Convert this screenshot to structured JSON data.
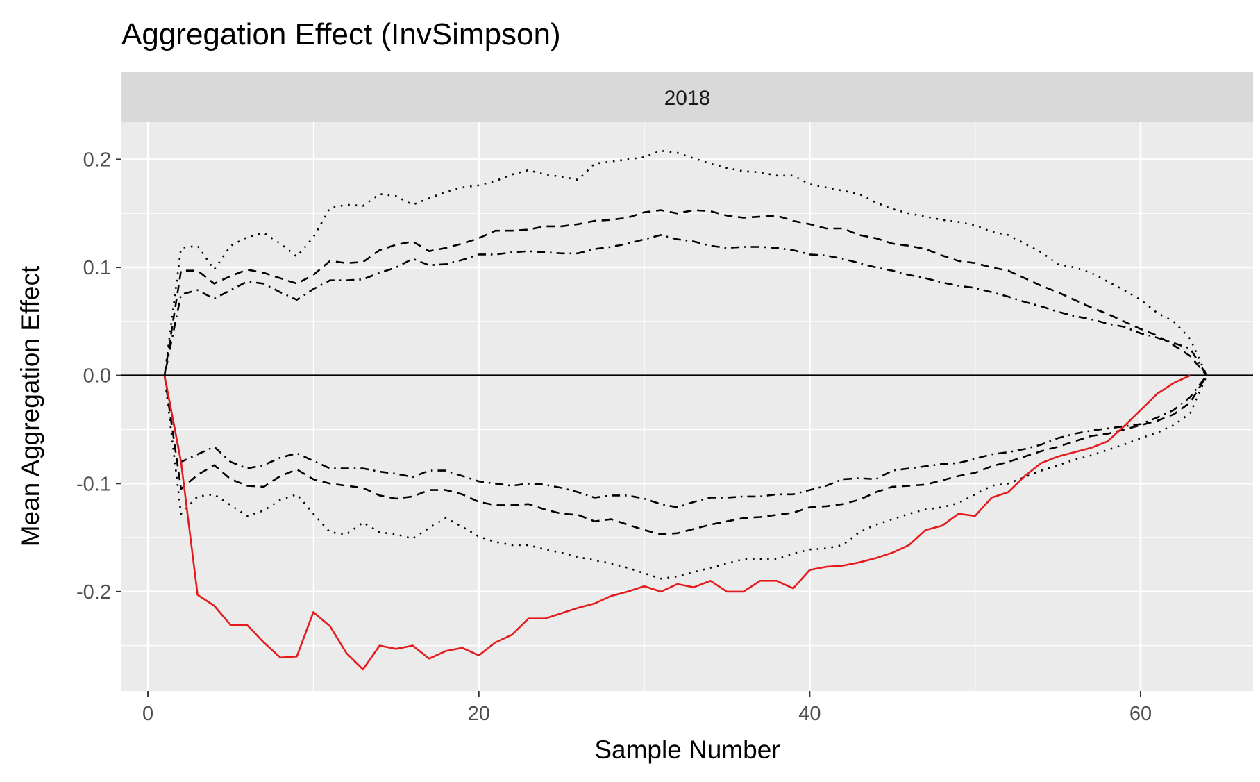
{
  "chart_data": {
    "type": "line",
    "title": "Aggregation Effect (InvSimpson)",
    "facet_label": "2018",
    "xlabel": "Sample Number",
    "ylabel": "Mean Aggregation Effect",
    "xlim": [
      -1.6,
      66.8
    ],
    "ylim": [
      -0.292,
      0.235
    ],
    "x_ticks": [
      0,
      20,
      40,
      60
    ],
    "x_tick_labels": [
      "0",
      "20",
      "40",
      "60"
    ],
    "y_ticks": [
      0.2,
      0.1,
      0.0,
      -0.1,
      -0.2
    ],
    "y_tick_labels": [
      "0.2",
      "0.1",
      "0.0",
      "-0.1",
      "-0.2"
    ],
    "grid": true,
    "reference_line": 0,
    "colors": {
      "observed": "#e41a1c",
      "envelope": "#000000",
      "panel": "#ebebeb",
      "strip": "#d9d9d9",
      "grid": "#ffffff"
    },
    "series": [
      {
        "style": "solid-red",
        "x": [
          1,
          2,
          3,
          4,
          5,
          6,
          7,
          8,
          9,
          10,
          11,
          12,
          13,
          14,
          15,
          16,
          17,
          18,
          19,
          20,
          21,
          22,
          23,
          24,
          25,
          26,
          27,
          28,
          29,
          30,
          31,
          32,
          33,
          34,
          35,
          36,
          37,
          38,
          39,
          40,
          41,
          42,
          43,
          44,
          45,
          46,
          47,
          48,
          49,
          50,
          51,
          52,
          53,
          54,
          55,
          56,
          57,
          58,
          59,
          60,
          61,
          62,
          63
        ],
        "y": [
          0,
          -0.08,
          -0.203,
          -0.213,
          -0.231,
          -0.231,
          -0.247,
          -0.261,
          -0.26,
          -0.219,
          -0.232,
          -0.257,
          -0.272,
          -0.25,
          -0.253,
          -0.25,
          -0.262,
          -0.255,
          -0.252,
          -0.259,
          -0.247,
          -0.24,
          -0.225,
          -0.225,
          -0.22,
          -0.215,
          -0.211,
          -0.204,
          -0.2,
          -0.195,
          -0.2,
          -0.193,
          -0.196,
          -0.19,
          -0.2,
          -0.2,
          -0.19,
          -0.19,
          -0.197,
          -0.18,
          -0.177,
          -0.176,
          -0.173,
          -0.169,
          -0.164,
          -0.157,
          -0.143,
          -0.139,
          -0.128,
          -0.13,
          -0.113,
          -0.108,
          -0.093,
          -0.081,
          -0.075,
          -0.071,
          -0.067,
          -0.061,
          -0.047,
          -0.032,
          -0.017,
          -0.007,
          0
        ]
      },
      {
        "style": "dotted-upper",
        "x": [
          1,
          2,
          3,
          4,
          5,
          6,
          7,
          8,
          9,
          10,
          11,
          12,
          13,
          14,
          15,
          16,
          17,
          18,
          19,
          20,
          21,
          22,
          23,
          24,
          25,
          26,
          27,
          28,
          29,
          30,
          31,
          32,
          33,
          34,
          35,
          36,
          37,
          38,
          39,
          40,
          41,
          42,
          43,
          44,
          45,
          46,
          47,
          48,
          49,
          50,
          51,
          52,
          53,
          54,
          55,
          56,
          57,
          58,
          59,
          60,
          61,
          62,
          63,
          64
        ],
        "y": [
          0,
          0.118,
          0.12,
          0.098,
          0.12,
          0.128,
          0.132,
          0.122,
          0.11,
          0.128,
          0.155,
          0.158,
          0.157,
          0.168,
          0.166,
          0.158,
          0.164,
          0.17,
          0.174,
          0.176,
          0.18,
          0.186,
          0.19,
          0.186,
          0.184,
          0.181,
          0.196,
          0.198,
          0.2,
          0.202,
          0.208,
          0.206,
          0.201,
          0.196,
          0.192,
          0.189,
          0.188,
          0.185,
          0.185,
          0.177,
          0.174,
          0.171,
          0.168,
          0.16,
          0.154,
          0.15,
          0.147,
          0.144,
          0.142,
          0.139,
          0.133,
          0.13,
          0.122,
          0.114,
          0.103,
          0.1,
          0.095,
          0.087,
          0.079,
          0.07,
          0.058,
          0.05,
          0.034,
          0
        ]
      },
      {
        "style": "dashed-upper",
        "x": [
          1,
          2,
          3,
          4,
          5,
          6,
          7,
          8,
          9,
          10,
          11,
          12,
          13,
          14,
          15,
          16,
          17,
          18,
          19,
          20,
          21,
          22,
          23,
          24,
          25,
          26,
          27,
          28,
          29,
          30,
          31,
          32,
          33,
          34,
          35,
          36,
          37,
          38,
          39,
          40,
          41,
          42,
          43,
          44,
          45,
          46,
          47,
          48,
          49,
          50,
          51,
          52,
          53,
          54,
          55,
          56,
          57,
          58,
          59,
          60,
          61,
          62,
          63,
          64
        ],
        "y": [
          0,
          0.097,
          0.097,
          0.085,
          0.092,
          0.098,
          0.095,
          0.09,
          0.085,
          0.093,
          0.106,
          0.104,
          0.105,
          0.116,
          0.121,
          0.124,
          0.115,
          0.118,
          0.122,
          0.127,
          0.134,
          0.134,
          0.135,
          0.138,
          0.138,
          0.14,
          0.143,
          0.144,
          0.146,
          0.151,
          0.153,
          0.15,
          0.153,
          0.152,
          0.148,
          0.146,
          0.147,
          0.148,
          0.143,
          0.14,
          0.136,
          0.136,
          0.13,
          0.127,
          0.122,
          0.12,
          0.117,
          0.111,
          0.106,
          0.104,
          0.1,
          0.097,
          0.09,
          0.083,
          0.077,
          0.07,
          0.063,
          0.057,
          0.05,
          0.043,
          0.037,
          0.028,
          0.018,
          0
        ]
      },
      {
        "style": "dotdash-upper",
        "x": [
          1,
          2,
          3,
          4,
          5,
          6,
          7,
          8,
          9,
          10,
          11,
          12,
          13,
          14,
          15,
          16,
          17,
          18,
          19,
          20,
          21,
          22,
          23,
          24,
          25,
          26,
          27,
          28,
          29,
          30,
          31,
          32,
          33,
          34,
          35,
          36,
          37,
          38,
          39,
          40,
          41,
          42,
          43,
          44,
          45,
          46,
          47,
          48,
          49,
          50,
          51,
          52,
          53,
          54,
          55,
          56,
          57,
          58,
          59,
          60,
          61,
          62,
          63,
          64
        ],
        "y": [
          0,
          0.075,
          0.079,
          0.071,
          0.079,
          0.087,
          0.085,
          0.077,
          0.07,
          0.08,
          0.088,
          0.088,
          0.089,
          0.095,
          0.1,
          0.108,
          0.102,
          0.103,
          0.107,
          0.112,
          0.112,
          0.114,
          0.115,
          0.114,
          0.113,
          0.113,
          0.117,
          0.119,
          0.122,
          0.126,
          0.13,
          0.126,
          0.124,
          0.12,
          0.118,
          0.119,
          0.119,
          0.118,
          0.116,
          0.112,
          0.111,
          0.108,
          0.104,
          0.1,
          0.097,
          0.093,
          0.09,
          0.086,
          0.083,
          0.081,
          0.077,
          0.073,
          0.068,
          0.064,
          0.059,
          0.055,
          0.052,
          0.048,
          0.045,
          0.039,
          0.035,
          0.03,
          0.025,
          0
        ]
      },
      {
        "style": "dotdash-lower",
        "x": [
          1,
          2,
          3,
          4,
          5,
          6,
          7,
          8,
          9,
          10,
          11,
          12,
          13,
          14,
          15,
          16,
          17,
          18,
          19,
          20,
          21,
          22,
          23,
          24,
          25,
          26,
          27,
          28,
          29,
          30,
          31,
          32,
          33,
          34,
          35,
          36,
          37,
          38,
          39,
          40,
          41,
          42,
          43,
          44,
          45,
          46,
          47,
          48,
          49,
          50,
          51,
          52,
          53,
          54,
          55,
          56,
          57,
          58,
          59,
          60,
          61,
          62,
          63,
          64
        ],
        "y": [
          0,
          -0.08,
          -0.073,
          -0.066,
          -0.08,
          -0.086,
          -0.083,
          -0.076,
          -0.072,
          -0.079,
          -0.086,
          -0.086,
          -0.086,
          -0.089,
          -0.091,
          -0.094,
          -0.088,
          -0.088,
          -0.093,
          -0.098,
          -0.1,
          -0.102,
          -0.1,
          -0.101,
          -0.104,
          -0.108,
          -0.113,
          -0.111,
          -0.111,
          -0.114,
          -0.119,
          -0.122,
          -0.117,
          -0.113,
          -0.113,
          -0.112,
          -0.112,
          -0.11,
          -0.11,
          -0.106,
          -0.102,
          -0.096,
          -0.095,
          -0.096,
          -0.088,
          -0.086,
          -0.084,
          -0.082,
          -0.081,
          -0.077,
          -0.073,
          -0.071,
          -0.068,
          -0.064,
          -0.058,
          -0.054,
          -0.051,
          -0.049,
          -0.047,
          -0.045,
          -0.039,
          -0.032,
          -0.02,
          0
        ]
      },
      {
        "style": "dashed-lower",
        "x": [
          1,
          2,
          3,
          4,
          5,
          6,
          7,
          8,
          9,
          10,
          11,
          12,
          13,
          14,
          15,
          16,
          17,
          18,
          19,
          20,
          21,
          22,
          23,
          24,
          25,
          26,
          27,
          28,
          29,
          30,
          31,
          32,
          33,
          34,
          35,
          36,
          37,
          38,
          39,
          40,
          41,
          42,
          43,
          44,
          45,
          46,
          47,
          48,
          49,
          50,
          51,
          52,
          53,
          54,
          55,
          56,
          57,
          58,
          59,
          60,
          61,
          62,
          63,
          64
        ],
        "y": [
          0,
          -0.105,
          -0.092,
          -0.083,
          -0.096,
          -0.102,
          -0.103,
          -0.093,
          -0.087,
          -0.096,
          -0.1,
          -0.102,
          -0.104,
          -0.111,
          -0.114,
          -0.112,
          -0.106,
          -0.106,
          -0.11,
          -0.117,
          -0.12,
          -0.12,
          -0.119,
          -0.124,
          -0.128,
          -0.129,
          -0.135,
          -0.133,
          -0.138,
          -0.143,
          -0.147,
          -0.146,
          -0.142,
          -0.138,
          -0.135,
          -0.132,
          -0.131,
          -0.129,
          -0.127,
          -0.122,
          -0.121,
          -0.119,
          -0.115,
          -0.108,
          -0.103,
          -0.102,
          -0.101,
          -0.097,
          -0.093,
          -0.09,
          -0.084,
          -0.08,
          -0.075,
          -0.07,
          -0.066,
          -0.061,
          -0.056,
          -0.054,
          -0.05,
          -0.046,
          -0.042,
          -0.036,
          -0.025,
          0
        ]
      },
      {
        "style": "dotted-lower",
        "x": [
          1,
          2,
          3,
          4,
          5,
          6,
          7,
          8,
          9,
          10,
          11,
          12,
          13,
          14,
          15,
          16,
          17,
          18,
          19,
          20,
          21,
          22,
          23,
          24,
          25,
          26,
          27,
          28,
          29,
          30,
          31,
          32,
          33,
          34,
          35,
          36,
          37,
          38,
          39,
          40,
          41,
          42,
          43,
          44,
          45,
          46,
          47,
          48,
          49,
          50,
          51,
          52,
          53,
          54,
          55,
          56,
          57,
          58,
          59,
          60,
          61,
          62,
          63,
          64
        ],
        "y": [
          0,
          -0.128,
          -0.112,
          -0.11,
          -0.12,
          -0.13,
          -0.125,
          -0.115,
          -0.11,
          -0.128,
          -0.145,
          -0.147,
          -0.136,
          -0.145,
          -0.147,
          -0.151,
          -0.141,
          -0.132,
          -0.14,
          -0.149,
          -0.154,
          -0.157,
          -0.157,
          -0.161,
          -0.164,
          -0.168,
          -0.171,
          -0.174,
          -0.178,
          -0.183,
          -0.188,
          -0.186,
          -0.182,
          -0.178,
          -0.174,
          -0.17,
          -0.17,
          -0.17,
          -0.165,
          -0.161,
          -0.16,
          -0.157,
          -0.145,
          -0.138,
          -0.133,
          -0.128,
          -0.124,
          -0.122,
          -0.118,
          -0.11,
          -0.102,
          -0.1,
          -0.094,
          -0.088,
          -0.083,
          -0.078,
          -0.074,
          -0.069,
          -0.064,
          -0.058,
          -0.053,
          -0.046,
          -0.035,
          0
        ]
      }
    ]
  }
}
